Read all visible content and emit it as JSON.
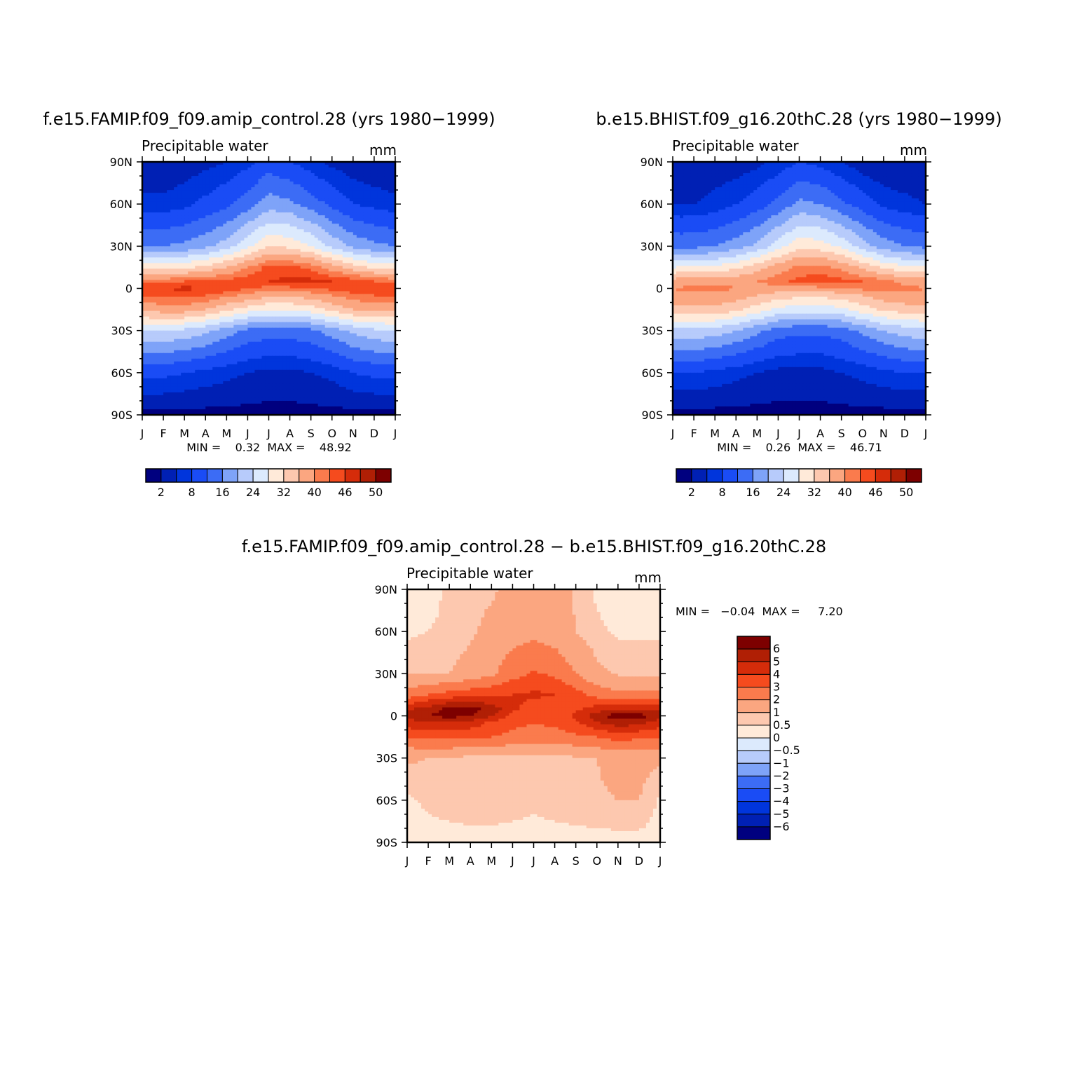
{
  "chart_data": [
    {
      "type": "heatmap",
      "title": "f.e15.FAMIP.f09_f09.amip_control.28 (yrs 1980−1999)",
      "subtitle_left": "Precipitable water",
      "subtitle_right": "mm",
      "x_ticks": [
        "J",
        "F",
        "M",
        "A",
        "M",
        "J",
        "J",
        "A",
        "S",
        "O",
        "N",
        "D",
        "J"
      ],
      "y_ticks": [
        "90N",
        "60N",
        "30N",
        "0",
        "30S",
        "60S",
        "90S"
      ],
      "min_max_text": "MIN =    0.32  MAX =    48.92",
      "colorbar": {
        "orientation": "horizontal",
        "labels": [
          "2",
          "8",
          "16",
          "24",
          "32",
          "40",
          "46",
          "50"
        ],
        "label_indices": [
          1,
          3,
          5,
          7,
          9,
          11,
          13,
          15
        ]
      },
      "grid": {
        "lats": [
          90,
          60,
          30,
          15,
          5,
          0,
          -5,
          -15,
          -30,
          -60,
          -90
        ],
        "months": [
          "J",
          "F",
          "M",
          "A",
          "M",
          "J",
          "J",
          "A",
          "S",
          "O",
          "N",
          "D",
          "J"
        ],
        "values": [
          [
            2,
            2,
            3,
            4,
            5,
            7,
            10,
            8,
            6,
            4,
            3,
            2,
            2
          ],
          [
            6,
            6,
            7,
            9,
            11,
            14,
            18,
            17,
            14,
            11,
            8,
            7,
            6
          ],
          [
            16,
            16,
            17,
            19,
            22,
            27,
            32,
            31,
            28,
            23,
            19,
            17,
            16
          ],
          [
            30,
            30,
            31,
            33,
            36,
            40,
            44,
            44,
            42,
            38,
            34,
            31,
            30
          ],
          [
            42,
            42,
            43,
            43,
            44,
            45,
            46,
            47,
            47,
            46,
            45,
            43,
            42
          ],
          [
            45,
            46,
            47,
            46,
            45,
            43,
            42,
            42,
            43,
            44,
            45,
            45,
            45
          ],
          [
            43,
            44,
            44,
            43,
            41,
            39,
            37,
            37,
            38,
            40,
            42,
            43,
            43
          ],
          [
            37,
            38,
            38,
            36,
            33,
            30,
            28,
            28,
            30,
            33,
            36,
            37,
            37
          ],
          [
            24,
            24,
            23,
            21,
            18,
            15,
            14,
            14,
            15,
            18,
            21,
            23,
            24
          ],
          [
            9,
            9,
            8,
            7,
            6,
            5,
            4,
            4,
            5,
            6,
            8,
            9,
            9
          ],
          [
            1,
            1,
            1,
            1,
            1,
            1,
            1,
            1,
            1,
            1,
            1,
            1,
            1
          ]
        ]
      }
    },
    {
      "type": "heatmap",
      "title": "b.e15.BHIST.f09_g16.20thC.28 (yrs 1980−1999)",
      "subtitle_left": "Precipitable water",
      "subtitle_right": "mm",
      "x_ticks": [
        "J",
        "F",
        "M",
        "A",
        "M",
        "J",
        "J",
        "A",
        "S",
        "O",
        "N",
        "D",
        "J"
      ],
      "y_ticks": [
        "90N",
        "60N",
        "30N",
        "0",
        "30S",
        "60S",
        "90S"
      ],
      "min_max_text": "MIN =    0.26  MAX =    46.71",
      "colorbar": {
        "orientation": "horizontal",
        "labels": [
          "2",
          "8",
          "16",
          "24",
          "32",
          "40",
          "46",
          "50"
        ],
        "label_indices": [
          1,
          3,
          5,
          7,
          9,
          11,
          13,
          15
        ]
      },
      "grid": {
        "lats": [
          90,
          60,
          30,
          15,
          5,
          0,
          -5,
          -15,
          -30,
          -60,
          -90
        ],
        "months": [
          "J",
          "F",
          "M",
          "A",
          "M",
          "J",
          "J",
          "A",
          "S",
          "O",
          "N",
          "D",
          "J"
        ],
        "values": [
          [
            2,
            2,
            3,
            3,
            4,
            6,
            8,
            7,
            5,
            3,
            2,
            2,
            2
          ],
          [
            5,
            5,
            6,
            8,
            10,
            13,
            17,
            16,
            13,
            10,
            7,
            6,
            5
          ],
          [
            15,
            15,
            16,
            18,
            21,
            26,
            31,
            30,
            27,
            22,
            18,
            16,
            15
          ],
          [
            28,
            28,
            29,
            31,
            34,
            38,
            41,
            41,
            39,
            35,
            31,
            29,
            28
          ],
          [
            38,
            38,
            39,
            39,
            40,
            42,
            44,
            45,
            44,
            43,
            41,
            39,
            38
          ],
          [
            40,
            41,
            41,
            40,
            39,
            38,
            38,
            39,
            40,
            41,
            41,
            41,
            40
          ],
          [
            39,
            39,
            39,
            38,
            36,
            34,
            33,
            33,
            34,
            36,
            38,
            39,
            39
          ],
          [
            34,
            35,
            35,
            33,
            30,
            27,
            26,
            26,
            27,
            30,
            33,
            34,
            34
          ],
          [
            23,
            23,
            22,
            20,
            17,
            14,
            13,
            13,
            14,
            17,
            20,
            22,
            23
          ],
          [
            8,
            8,
            7,
            6,
            5,
            4,
            4,
            4,
            5,
            6,
            7,
            8,
            8
          ],
          [
            1,
            1,
            1,
            1,
            1,
            1,
            1,
            1,
            1,
            1,
            1,
            1,
            1
          ]
        ]
      }
    },
    {
      "type": "heatmap",
      "title": "f.e15.FAMIP.f09_f09.amip_control.28 − b.e15.BHIST.f09_g16.20thC.28",
      "subtitle_left": "Precipitable water",
      "subtitle_right": "mm",
      "x_ticks": [
        "J",
        "F",
        "M",
        "A",
        "M",
        "J",
        "J",
        "A",
        "S",
        "O",
        "N",
        "D",
        "J"
      ],
      "y_ticks": [
        "90N",
        "60N",
        "30N",
        "0",
        "30S",
        "60S",
        "90S"
      ],
      "min_max_text": "MIN =   −0.04  MAX =     7.20",
      "colorbar": {
        "orientation": "vertical",
        "labels": [
          "6",
          "5",
          "4",
          "3",
          "2",
          "1",
          "0.5",
          "0",
          "−0.5",
          "−1",
          "−2",
          "−3",
          "−4",
          "−5",
          "−6"
        ]
      },
      "grid": {
        "lats": [
          90,
          60,
          30,
          15,
          5,
          0,
          -5,
          -15,
          -30,
          -60,
          -90
        ],
        "months": [
          "J",
          "F",
          "M",
          "A",
          "M",
          "J",
          "J",
          "A",
          "S",
          "O",
          "N",
          "D",
          "J"
        ],
        "values": [
          [
            0.3,
            0.3,
            0.6,
            0.8,
            0.9,
            1.2,
            1.5,
            1.3,
            0.9,
            0.4,
            0.3,
            0.3,
            0.3
          ],
          [
            0.4,
            0.5,
            0.6,
            0.9,
            1.2,
            1.6,
            1.7,
            1.5,
            1.0,
            0.6,
            0.4,
            0.4,
            0.4
          ],
          [
            0.9,
            0.9,
            1.0,
            1.3,
            1.8,
            2.6,
            3.1,
            2.8,
            2.0,
            1.2,
            0.9,
            0.9,
            0.9
          ],
          [
            2.4,
            3.0,
            3.4,
            3.6,
            3.8,
            4.0,
            4.2,
            4.0,
            3.4,
            2.6,
            2.2,
            2.3,
            2.4
          ],
          [
            4.8,
            5.4,
            6.2,
            6.4,
            5.6,
            4.2,
            3.6,
            3.4,
            3.8,
            4.4,
            4.8,
            4.8,
            4.8
          ],
          [
            5.2,
            6.0,
            6.4,
            6.0,
            5.0,
            3.6,
            3.0,
            3.2,
            4.2,
            5.6,
            6.6,
            6.6,
            5.2
          ],
          [
            4.6,
            4.8,
            5.0,
            4.6,
            3.8,
            3.2,
            3.0,
            3.2,
            3.8,
            4.8,
            5.6,
            5.2,
            4.6
          ],
          [
            3.0,
            3.2,
            3.3,
            3.2,
            3.0,
            2.8,
            2.6,
            2.6,
            2.8,
            3.0,
            3.4,
            3.2,
            3.0
          ],
          [
            1.1,
            1.0,
            0.9,
            0.8,
            0.8,
            0.7,
            0.7,
            0.8,
            0.9,
            1.0,
            1.3,
            1.3,
            1.1
          ],
          [
            0.4,
            0.6,
            0.7,
            0.8,
            0.8,
            0.7,
            0.6,
            0.7,
            0.8,
            0.9,
            1.0,
            1.0,
            0.4
          ],
          [
            0.3,
            0.3,
            0.3,
            0.3,
            0.3,
            0.3,
            0.3,
            0.3,
            0.3,
            0.3,
            0.3,
            0.3,
            0.3
          ]
        ]
      }
    }
  ]
}
